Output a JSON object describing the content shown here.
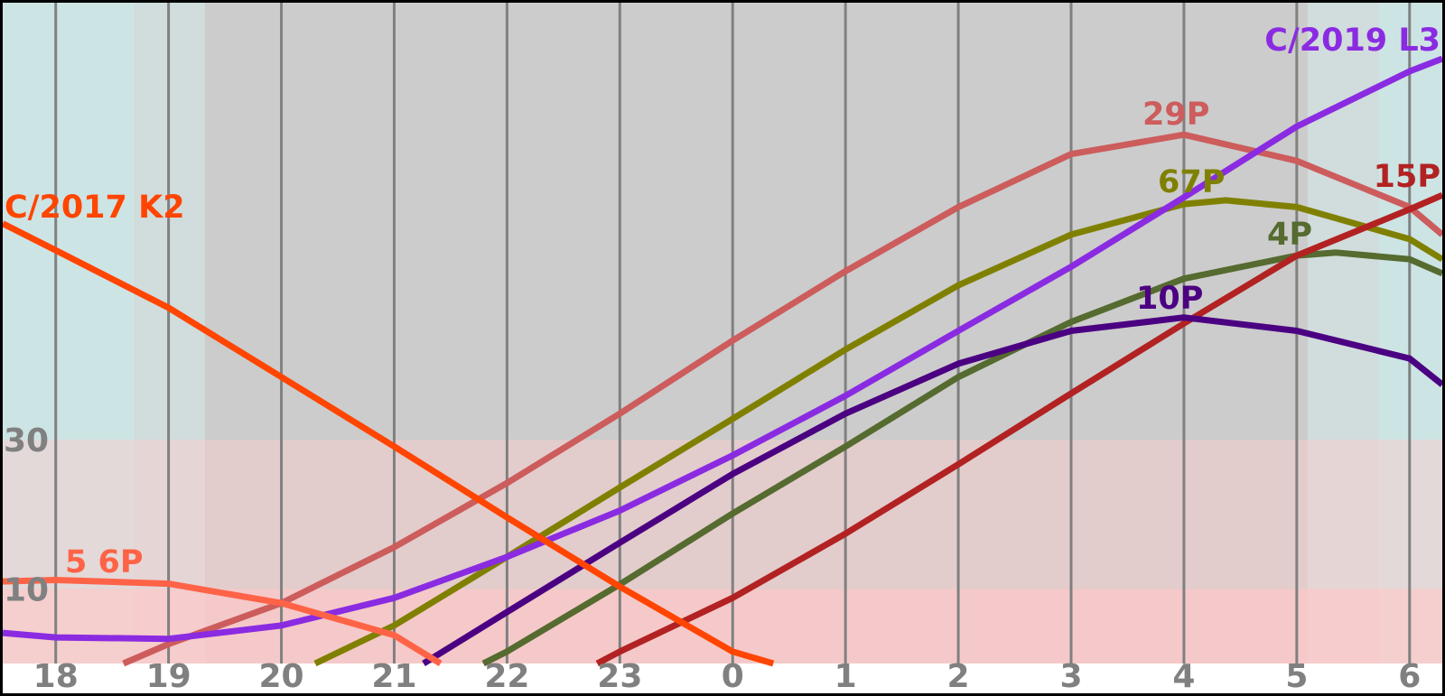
{
  "chart_data": {
    "type": "line",
    "xlim": [
      17.53,
      30.29
    ],
    "ylim": [
      0,
      88.6
    ],
    "xticks": [
      18,
      19,
      20,
      21,
      22,
      23,
      {
        "value": 24,
        "label": "0"
      },
      {
        "value": 25,
        "label": "1"
      },
      {
        "value": 26,
        "label": "2"
      },
      {
        "value": 27,
        "label": "3"
      },
      {
        "value": 28,
        "label": "4"
      },
      {
        "value": 29,
        "label": "5"
      },
      {
        "value": 30,
        "label": "6"
      }
    ],
    "yticks": [
      10,
      30
    ],
    "grid": true,
    "background_bands": [
      {
        "from": 17.53,
        "to": 18.69,
        "color": "#cde4e4"
      },
      {
        "from": 18.69,
        "to": 19.32,
        "color": "#d1dcdc"
      },
      {
        "from": 19.32,
        "to": 29.1,
        "color": "#cccccc"
      },
      {
        "from": 29.1,
        "to": 29.73,
        "color": "#d1dcdc"
      },
      {
        "from": 29.73,
        "to": 30.29,
        "color": "#cde4e4"
      }
    ],
    "altitude_bands": [
      {
        "from": 10,
        "to": 30,
        "color": "rgba(255,205,205,0.45)"
      },
      {
        "from": 0,
        "to": 10,
        "color": "rgba(255,200,200,0.8)"
      }
    ],
    "series": [
      {
        "name": "29P",
        "color": "#cd5c5c",
        "x": [
          18.6,
          19,
          20,
          21,
          22,
          23,
          24,
          25,
          26,
          27,
          28,
          29,
          30,
          30.29
        ],
        "values": [
          0,
          2.6,
          8.1,
          15.6,
          24.2,
          33.5,
          43.3,
          52.6,
          61.2,
          68.3,
          70.9,
          67.4,
          61.2,
          57.5
        ]
      },
      {
        "name": "67P",
        "color": "#808000",
        "x": [
          20.3,
          21,
          22,
          23,
          24,
          25,
          26,
          27,
          28,
          28.37,
          29,
          30,
          30.29
        ],
        "values": [
          0,
          5.1,
          14.3,
          23.6,
          32.8,
          42.1,
          50.7,
          57.5,
          61.6,
          62.1,
          61.2,
          56.9,
          54.2
        ]
      },
      {
        "name": "4P",
        "color": "#556b2f",
        "x": [
          21.79,
          22,
          23,
          24,
          25,
          26,
          27,
          28,
          29,
          29.35,
          30,
          30.29
        ],
        "values": [
          0,
          1.6,
          10.6,
          20.1,
          29.1,
          38.4,
          45.8,
          51.6,
          54.7,
          55.1,
          54.2,
          52.3
        ]
      },
      {
        "name": "15P",
        "color": "#b22222",
        "x": [
          22.8,
          23,
          24,
          25,
          26,
          27,
          28,
          29,
          30,
          30.29
        ],
        "values": [
          0,
          1.6,
          8.8,
          17.4,
          26.7,
          36.2,
          45.6,
          54.7,
          60.9,
          62.8
        ]
      },
      {
        "name": "10P",
        "color": "#4b0082",
        "x": [
          21.26,
          22,
          23,
          24,
          25,
          26,
          27,
          28,
          29,
          30,
          30.29
        ],
        "values": [
          0,
          6.9,
          16.2,
          25.4,
          33.5,
          40.2,
          44.6,
          46.4,
          44.6,
          40.9,
          37.4
        ]
      },
      {
        "name": "C/2019 L3",
        "color": "#8a2be2",
        "x": [
          17.53,
          18,
          19,
          20,
          21,
          22,
          23,
          24,
          25,
          26,
          27,
          28,
          29,
          30,
          30.29
        ],
        "values": [
          4.1,
          3.5,
          3.3,
          5.1,
          8.8,
          14.3,
          20.5,
          27.9,
          35.9,
          44.6,
          53.2,
          62.5,
          72.0,
          79.4,
          81.1
        ]
      },
      {
        "name": "5 6P",
        "color": "#ff6347",
        "x": [
          17.53,
          18,
          19,
          20,
          21,
          21.41
        ],
        "values": [
          11.0,
          11.2,
          10.7,
          8.1,
          3.8,
          0
        ]
      },
      {
        "name": "C/2017 K2",
        "color": "#ff4500",
        "x": [
          17.53,
          18,
          19,
          20,
          21,
          22,
          23,
          24,
          24.36
        ],
        "values": [
          59.0,
          55.4,
          47.7,
          38.4,
          29.1,
          19.6,
          10.3,
          1.6,
          0
        ]
      }
    ]
  }
}
